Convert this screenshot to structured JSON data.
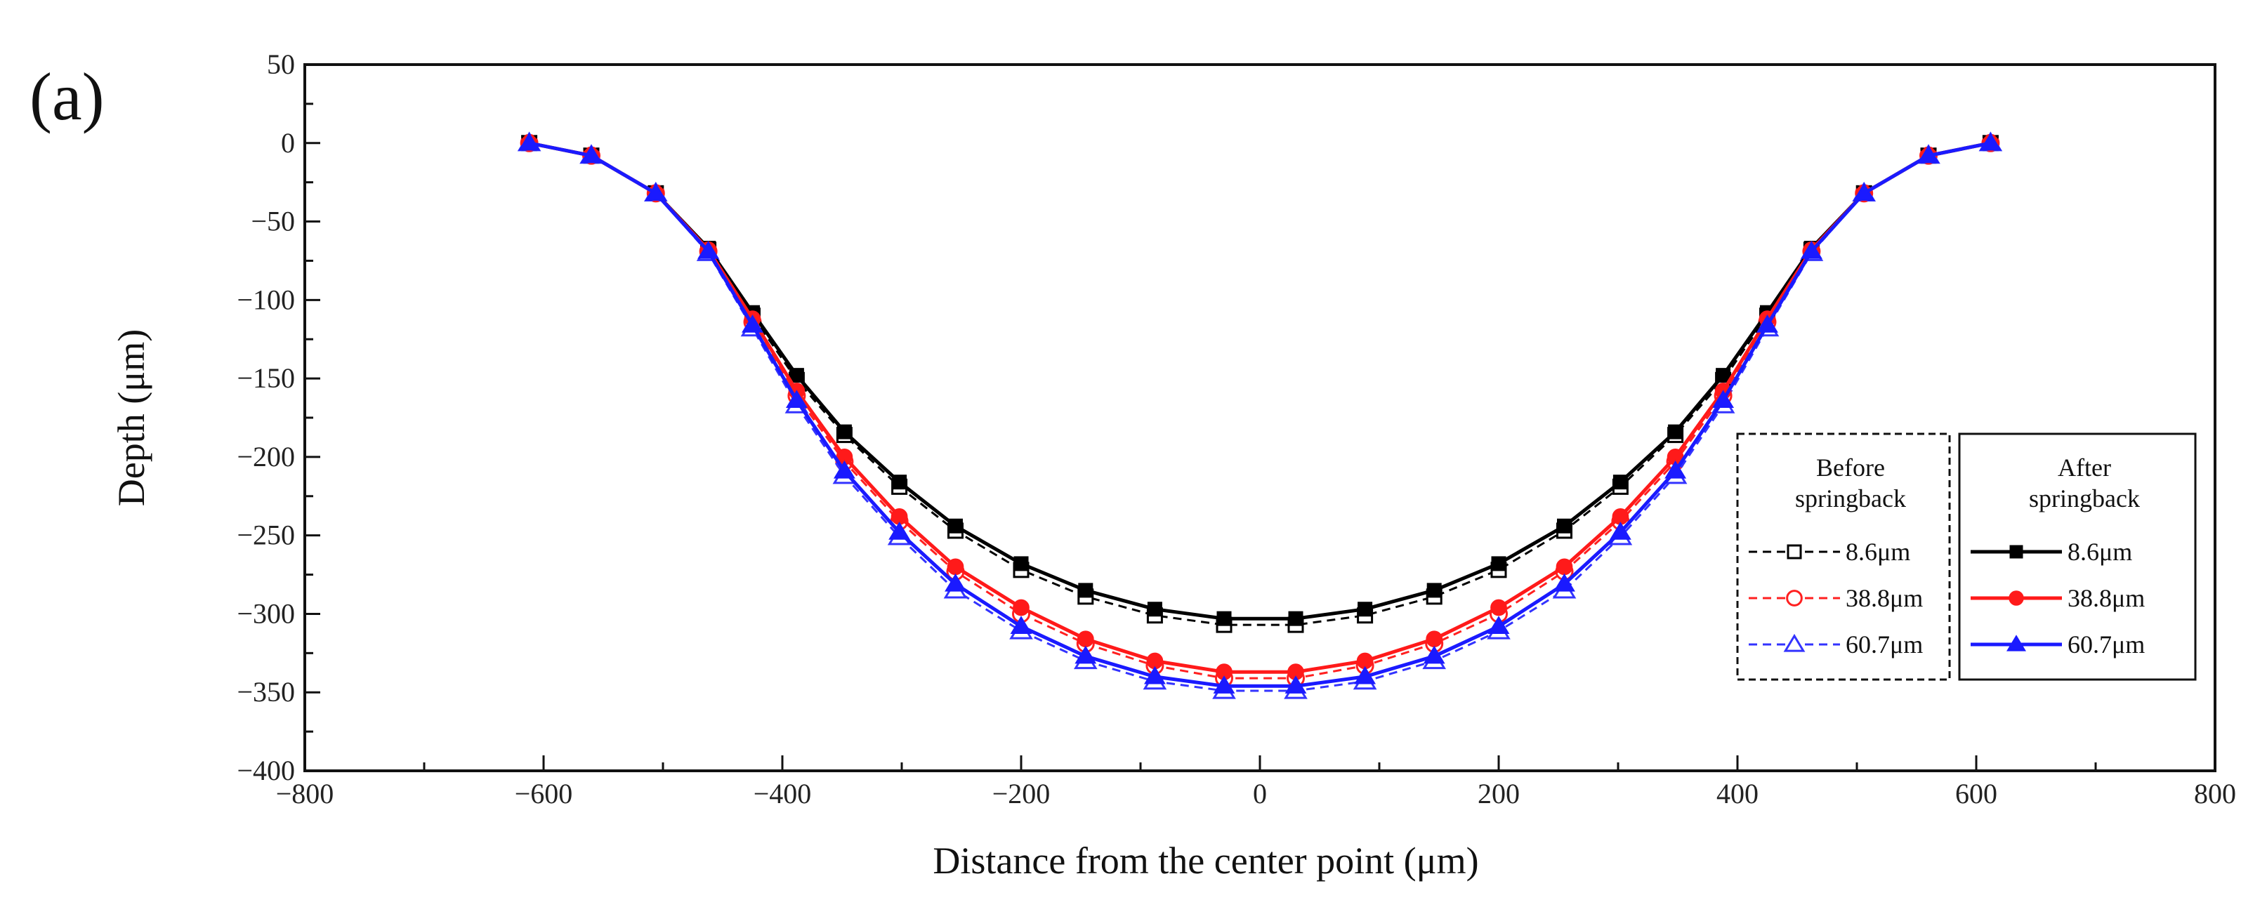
{
  "panel_label": "(a)",
  "chart_data": {
    "type": "line",
    "title": "",
    "xlabel": "Distance from the center point (μm)",
    "ylabel": "Depth (μm)",
    "xlim": [
      -800,
      800
    ],
    "ylim": [
      -400,
      50
    ],
    "x_ticks": [
      -800,
      -600,
      -400,
      -200,
      0,
      200,
      400,
      600,
      800
    ],
    "y_ticks": [
      50,
      0,
      -50,
      -100,
      -150,
      -200,
      -250,
      -300,
      -350,
      -400
    ],
    "x_tick_labels": [
      "−800",
      "−600",
      "−400",
      "−200",
      "0",
      "200",
      "400",
      "600",
      "800"
    ],
    "y_tick_labels": [
      "50",
      "0",
      "−50",
      "−100",
      "−150",
      "−200",
      "−250",
      "−300",
      "−350",
      "−400"
    ],
    "grid": false,
    "legend_position": "lower-right",
    "legend_groups": [
      {
        "title_lines": [
          "Before",
          "springback"
        ],
        "style": "dashed",
        "markers": "open"
      },
      {
        "title_lines": [
          "After",
          "springback"
        ],
        "style": "solid",
        "markers": "filled"
      }
    ],
    "x": [
      -612,
      -560,
      -506,
      -462,
      -425,
      -388,
      -348,
      -302,
      -255,
      -200,
      -146,
      -88,
      -30,
      30,
      88,
      146,
      200,
      255,
      302,
      348,
      388,
      425,
      462,
      506,
      560,
      612
    ],
    "series": [
      {
        "name": "8.6μm",
        "group": "Before springback",
        "color": "#000000",
        "marker": "square",
        "filled": false,
        "dashed": true,
        "values": [
          0,
          -8,
          -32,
          -68,
          -110,
          -151,
          -186,
          -219,
          -247,
          -272,
          -289,
          -301,
          -307,
          -307,
          -301,
          -289,
          -272,
          -247,
          -219,
          -186,
          -151,
          -110,
          -68,
          -32,
          -8,
          0
        ]
      },
      {
        "name": "38.8μm",
        "group": "Before springback",
        "color": "#ff2020",
        "marker": "circle",
        "filled": false,
        "dashed": true,
        "values": [
          0,
          -8,
          -32,
          -69,
          -114,
          -161,
          -203,
          -241,
          -273,
          -300,
          -319,
          -333,
          -341,
          -341,
          -333,
          -319,
          -300,
          -273,
          -241,
          -203,
          -161,
          -114,
          -69,
          -32,
          -8,
          0
        ]
      },
      {
        "name": "60.7μm",
        "group": "Before springback",
        "color": "#3333ff",
        "marker": "triangle",
        "filled": false,
        "dashed": true,
        "values": [
          0,
          -8,
          -32,
          -70,
          -118,
          -167,
          -212,
          -251,
          -285,
          -311,
          -330,
          -343,
          -349,
          -349,
          -343,
          -330,
          -311,
          -285,
          -251,
          -212,
          -167,
          -118,
          -70,
          -32,
          -8,
          0
        ]
      },
      {
        "name": "8.6μm",
        "group": "After springback",
        "color": "#000000",
        "marker": "square",
        "filled": true,
        "dashed": false,
        "values": [
          0,
          -8,
          -32,
          -67,
          -108,
          -148,
          -184,
          -216,
          -244,
          -268,
          -285,
          -297,
          -303,
          -303,
          -297,
          -285,
          -268,
          -244,
          -216,
          -184,
          -148,
          -108,
          -67,
          -32,
          -8,
          0
        ]
      },
      {
        "name": "38.8μm",
        "group": "After springback",
        "color": "#ff1a1a",
        "marker": "circle",
        "filled": true,
        "dashed": false,
        "values": [
          0,
          -8,
          -32,
          -68,
          -112,
          -158,
          -200,
          -238,
          -270,
          -296,
          -316,
          -330,
          -337,
          -337,
          -330,
          -316,
          -296,
          -270,
          -238,
          -200,
          -158,
          -112,
          -68,
          -32,
          -8,
          0
        ]
      },
      {
        "name": "60.7μm",
        "group": "After springback",
        "color": "#1a1aff",
        "marker": "triangle",
        "filled": true,
        "dashed": false,
        "values": [
          0,
          -8,
          -32,
          -69,
          -116,
          -164,
          -209,
          -248,
          -281,
          -308,
          -327,
          -340,
          -346,
          -346,
          -340,
          -327,
          -308,
          -281,
          -248,
          -209,
          -164,
          -116,
          -69,
          -32,
          -8,
          0
        ]
      }
    ]
  }
}
